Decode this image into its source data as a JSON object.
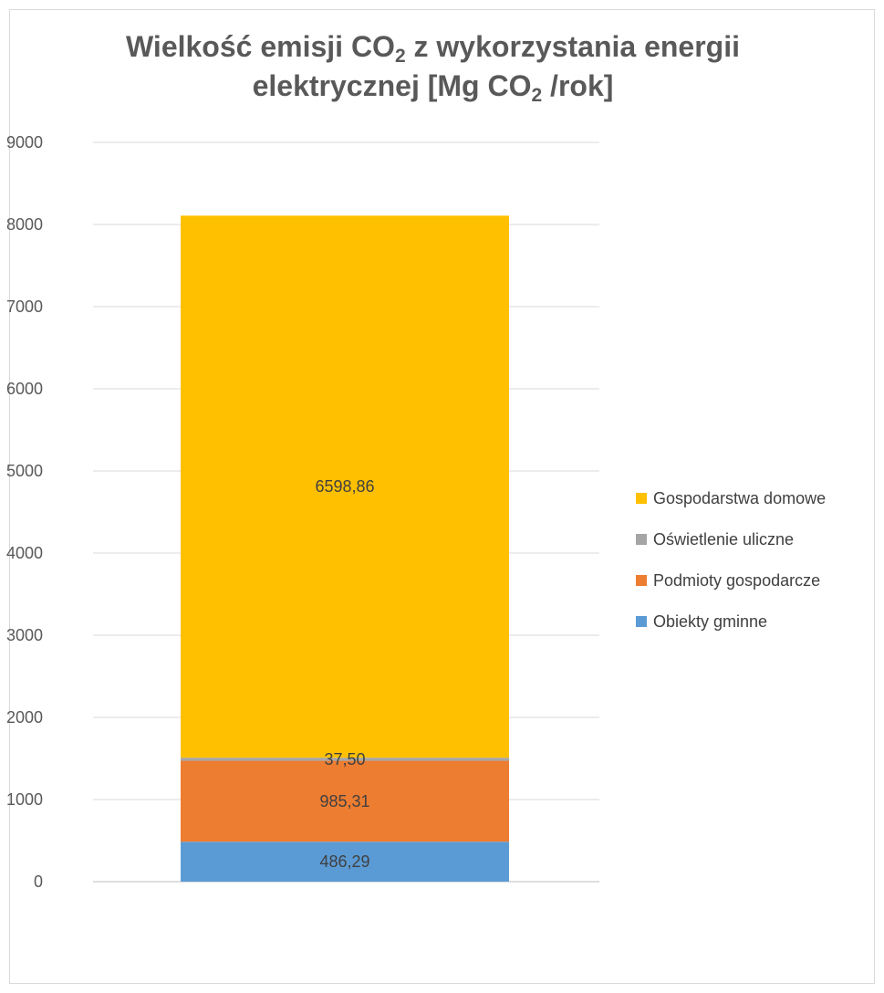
{
  "chart_data": {
    "type": "bar",
    "stacked": true,
    "title": {
      "line1_pre": "Wielkość emisji CO",
      "line1_sub": "2",
      "line1_post": " z wykorzystania energii",
      "line2_pre": "elektrycznej [Mg CO",
      "line2_sub": "2",
      "line2_post": " /rok]"
    },
    "categories": [
      ""
    ],
    "ylim": [
      0,
      9000
    ],
    "yticks": [
      "0",
      "1000",
      "2000",
      "3000",
      "4000",
      "5000",
      "6000",
      "7000",
      "8000",
      "9000"
    ],
    "grid": true,
    "legend_position": "right",
    "series": [
      {
        "name": "Obiekty gminne",
        "values": [
          486.29
        ],
        "label": "486,29",
        "color": "#5b9bd5"
      },
      {
        "name": "Podmioty gospodarcze",
        "values": [
          985.31
        ],
        "label": "985,31",
        "color": "#ed7d31"
      },
      {
        "name": "Oświetlenie uliczne",
        "values": [
          37.5
        ],
        "label": "37,50",
        "color": "#a5a5a5"
      },
      {
        "name": "Gospodarstwa domowe",
        "values": [
          6598.86
        ],
        "label": "6598,86",
        "color": "#ffc000"
      }
    ],
    "legend_order": [
      "Gospodarstwa domowe",
      "Oświetlenie uliczne",
      "Podmioty gospodarcze",
      "Obiekty gminne"
    ]
  }
}
